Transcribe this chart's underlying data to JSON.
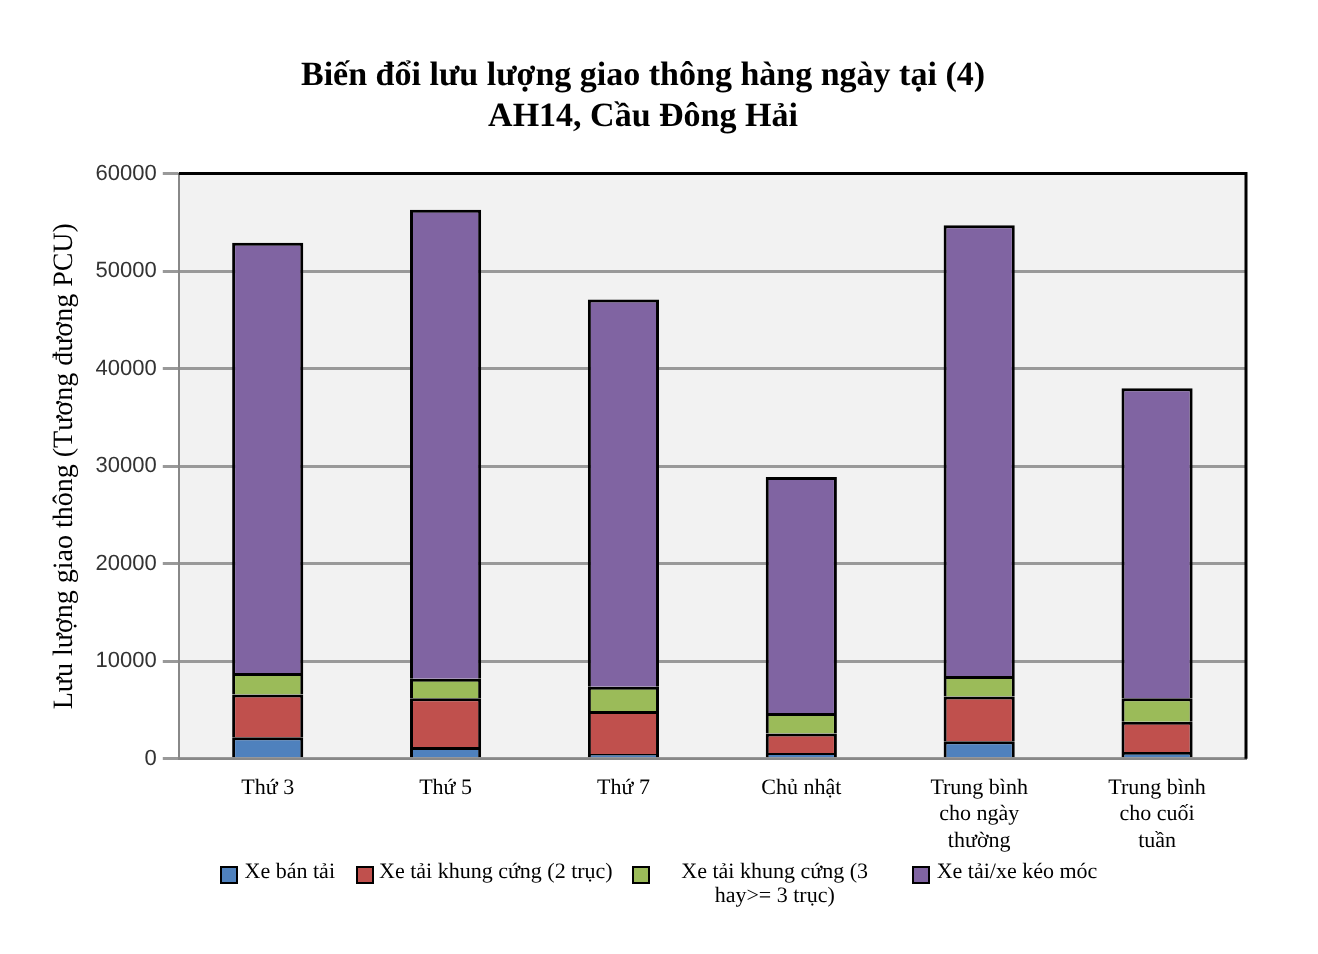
{
  "chart_data": {
    "type": "bar",
    "stacked": true,
    "title": "Biến đổi lưu lượng giao thông hàng ngày tại (4) AH14, Cầu Đông Hải",
    "ylabel": "Lưu lượng giao thông (Tương đương PCU)",
    "categories": [
      "Thứ 3",
      "Thứ 5",
      "Thứ 7",
      "Chủ nhật",
      "Trung bình cho ngày thường",
      "Trung bình cho cuối tuần"
    ],
    "series": [
      {
        "name": "Xe bán tải",
        "color": "#4f81bd",
        "values": [
          2200,
          1200,
          500,
          600,
          1800,
          700
        ]
      },
      {
        "name": "Xe tải khung cứng (2 trục)",
        "color": "#c0504d",
        "values": [
          4400,
          5000,
          4400,
          2000,
          4600,
          3100
        ]
      },
      {
        "name": "Xe tải khung cứng (3 hay>= 3 trục)",
        "color": "#9bbb59",
        "values": [
          2200,
          2000,
          2500,
          2100,
          2100,
          2400
        ]
      },
      {
        "name": "Xe tải/xe kéo móc",
        "color": "#8064a2",
        "values": [
          44100,
          48100,
          39700,
          24200,
          46200,
          31800
        ]
      }
    ],
    "ylim": [
      0,
      60000
    ],
    "yticks": [
      0,
      10000,
      20000,
      30000,
      40000,
      50000,
      60000
    ],
    "grid": "y",
    "legend": "bottom"
  }
}
